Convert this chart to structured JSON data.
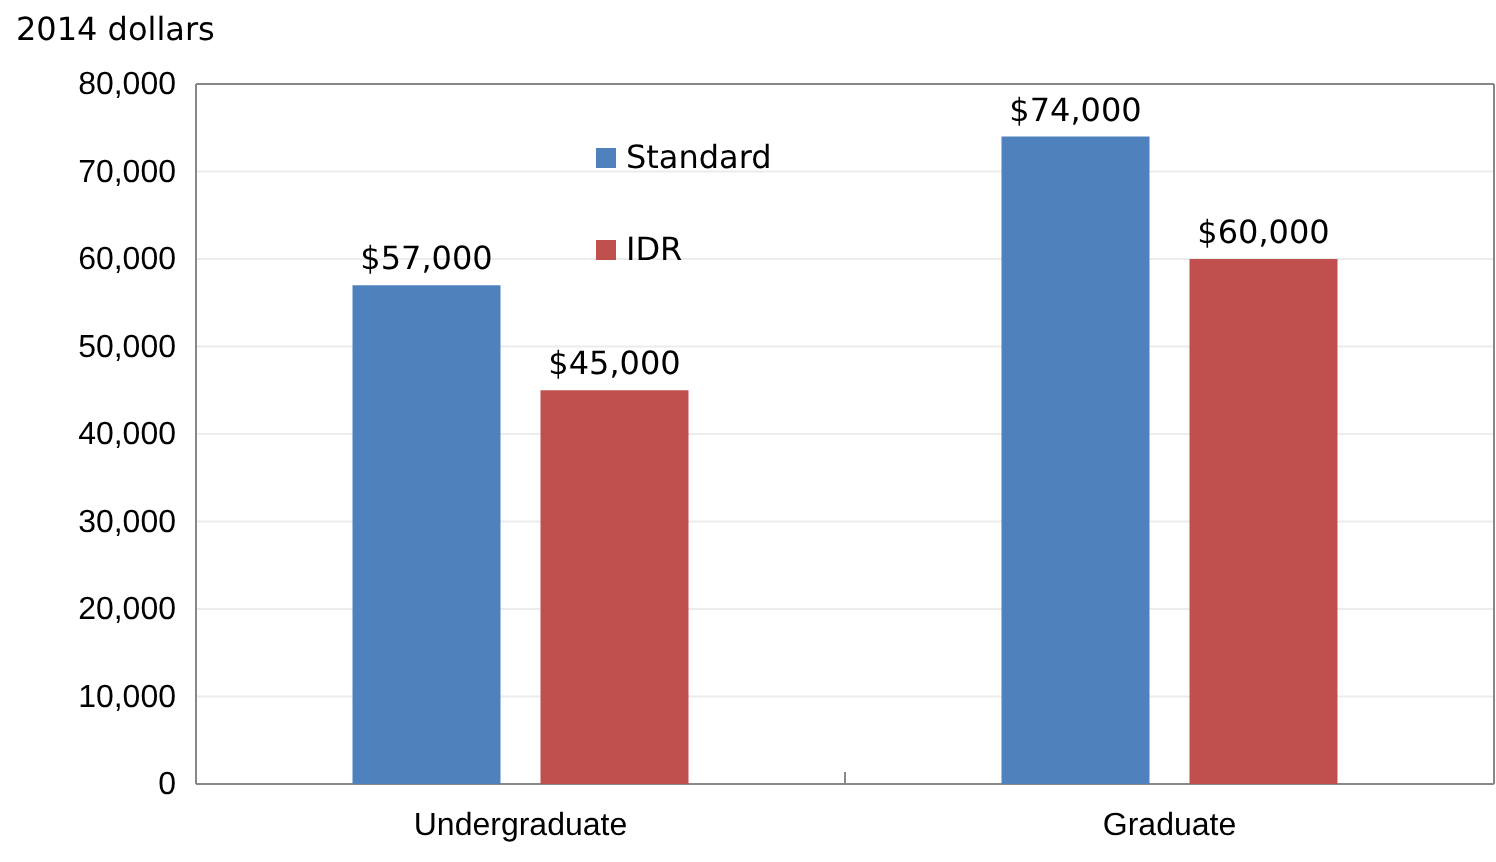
{
  "chart_data": {
    "type": "bar",
    "ylabel": "2014 dollars",
    "categories": [
      "Undergraduate",
      "Graduate"
    ],
    "series": [
      {
        "name": "Standard",
        "color": "#4f81bd",
        "values": [
          57000,
          74000
        ],
        "value_labels": [
          "$57,000",
          "$74,000"
        ]
      },
      {
        "name": "IDR",
        "color": "#c0504d",
        "values": [
          45000,
          60000
        ],
        "value_labels": [
          "$45,000",
          "$60,000"
        ]
      }
    ],
    "ylim": [
      0,
      80000
    ],
    "yticks": [
      {
        "value": 0,
        "label": "0"
      },
      {
        "value": 10000,
        "label": "10,000"
      },
      {
        "value": 20000,
        "label": "20,000"
      },
      {
        "value": 30000,
        "label": "30,000"
      },
      {
        "value": 40000,
        "label": "40,000"
      },
      {
        "value": 50000,
        "label": "50,000"
      },
      {
        "value": 60000,
        "label": "60,000"
      },
      {
        "value": 70000,
        "label": "70,000"
      },
      {
        "value": 80000,
        "label": "80,000"
      }
    ],
    "grid": "y",
    "legend": "top"
  }
}
